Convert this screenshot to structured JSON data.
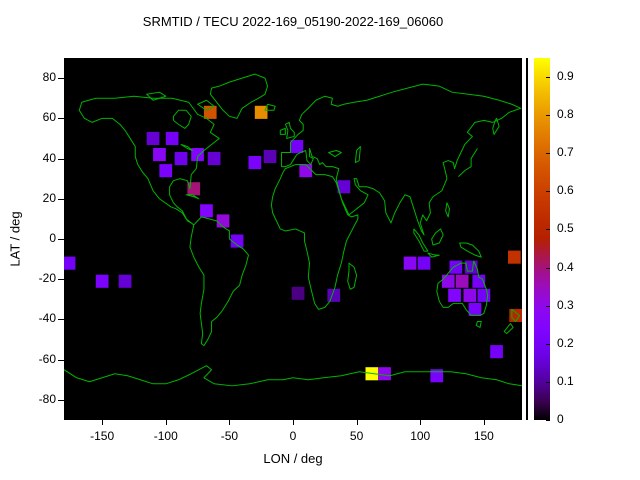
{
  "chart_data": {
    "type": "heatmap",
    "title": "SRMTID / TECU 2022-169_05190-2022-169_06060",
    "xlabel": "LON / deg",
    "ylabel": "LAT / deg",
    "xlim": [
      -180,
      180
    ],
    "ylim": [
      -90,
      90
    ],
    "x_ticks": [
      -150,
      -100,
      -50,
      0,
      50,
      100,
      150
    ],
    "y_ticks": [
      -80,
      -60,
      -40,
      -20,
      0,
      20,
      40,
      60,
      80
    ],
    "grid": false,
    "background_color": "#000000",
    "coastline_color": "#00b400",
    "colorbar": {
      "min": 0,
      "max": 0.95,
      "ticks": [
        0,
        0.1,
        0.2,
        0.3,
        0.4,
        0.5,
        0.6,
        0.7,
        0.8,
        0.9
      ],
      "position": "right",
      "palette": "gnuplot-pm3d black-purple-magenta-red-orange-yellow",
      "palette_formula": "r=sqrt(x), g=x^3, b=max(0,sin(2*pi*x))"
    },
    "cell_size_deg": {
      "lon": 10,
      "lat": 6.5
    },
    "cells_format": [
      "lon_center_deg",
      "lat_center_deg",
      "value_TECU"
    ],
    "cells": [
      [
        -65,
        63,
        0.65
      ],
      [
        -25,
        63,
        0.78
      ],
      [
        -110,
        50,
        0.15
      ],
      [
        -95,
        50,
        0.2
      ],
      [
        -105,
        42,
        0.28
      ],
      [
        -88,
        40,
        0.18
      ],
      [
        -100,
        34,
        0.22
      ],
      [
        -75,
        42,
        0.25
      ],
      [
        -62,
        40,
        0.15
      ],
      [
        -30,
        38,
        0.22
      ],
      [
        -18,
        41,
        0.12
      ],
      [
        3,
        46,
        0.2
      ],
      [
        10,
        34,
        0.3
      ],
      [
        40,
        26,
        0.15
      ],
      [
        -78,
        25,
        0.4
      ],
      [
        -68,
        14,
        0.25
      ],
      [
        -55,
        9,
        0.32
      ],
      [
        -44,
        -1,
        0.2
      ],
      [
        -176,
        -12,
        0.2
      ],
      [
        -150,
        -21,
        0.22
      ],
      [
        -132,
        -21,
        0.15
      ],
      [
        32,
        -28,
        0.12
      ],
      [
        4,
        -27,
        0.08
      ],
      [
        92,
        -12,
        0.28
      ],
      [
        103,
        -12,
        0.2
      ],
      [
        128,
        -14,
        0.2
      ],
      [
        140,
        -14,
        0.15
      ],
      [
        122,
        -21,
        0.3
      ],
      [
        133,
        -21,
        0.35
      ],
      [
        146,
        -21,
        0.2
      ],
      [
        127,
        -28,
        0.25
      ],
      [
        139,
        -28,
        0.3
      ],
      [
        150,
        -28,
        0.2
      ],
      [
        143,
        -35,
        0.22
      ],
      [
        174,
        -9,
        0.55
      ],
      [
        175,
        -38,
        0.5
      ],
      [
        160,
        -56,
        0.2
      ],
      [
        62,
        -67,
        0.95
      ],
      [
        72,
        -67,
        0.3
      ],
      [
        113,
        -68,
        0.22
      ]
    ]
  }
}
